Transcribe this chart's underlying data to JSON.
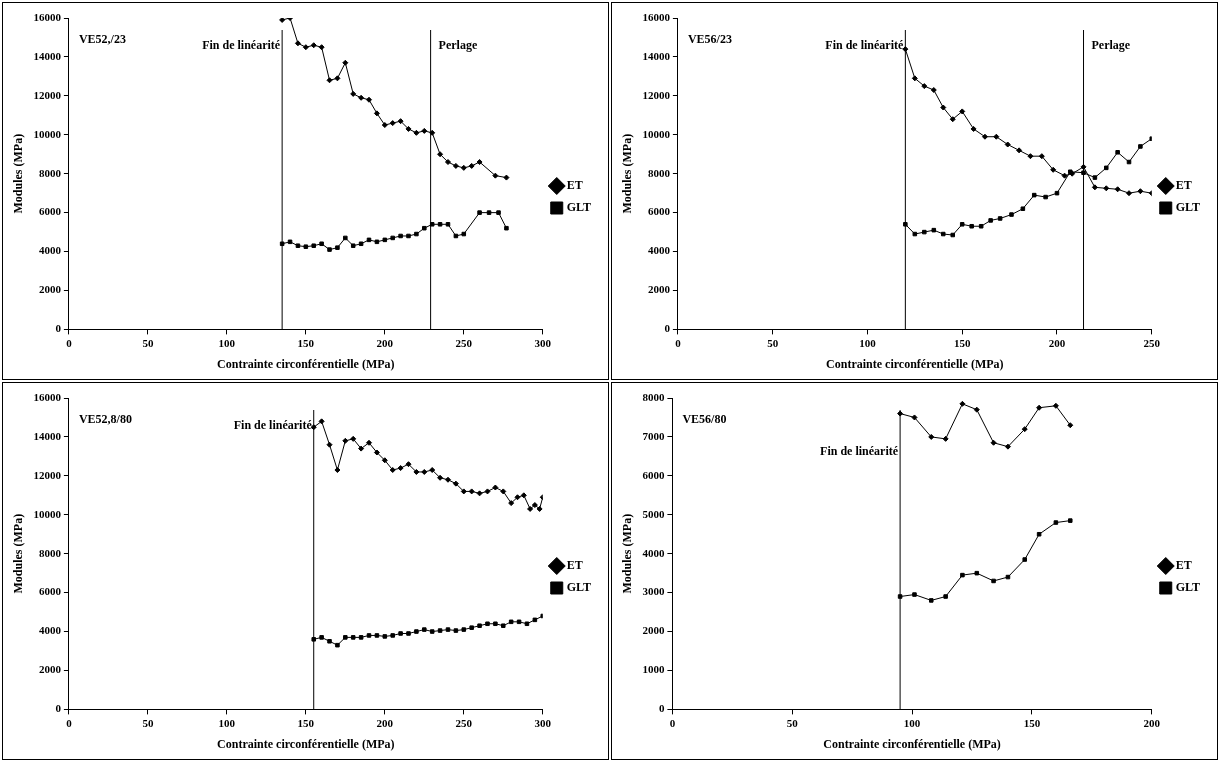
{
  "chart_data": [
    {
      "type": "line",
      "xlabel": "Contrainte circonférentielle (MPa)",
      "ylabel": "Modules (MPa)",
      "annotations": [
        "VE52,/23"
      ],
      "xlim": [
        0,
        300
      ],
      "xticks": [
        0,
        50,
        100,
        150,
        200,
        250,
        300
      ],
      "ylim": [
        0,
        16000
      ],
      "yticks": [
        0,
        2000,
        4000,
        6000,
        8000,
        10000,
        12000,
        14000,
        16000
      ],
      "grid": false,
      "legend": "right",
      "ref_lines": [
        {
          "axis": "x",
          "value": 135,
          "label": "Fin de linéarité",
          "color": "#000000"
        },
        {
          "axis": "x",
          "value": 229,
          "label": "Perlage",
          "color": "#000000"
        }
      ],
      "series": [
        {
          "name": "ET",
          "color": "#000000",
          "marker": "diamond",
          "x": [
            135,
            140,
            145,
            150,
            155,
            160,
            165,
            170,
            175,
            180,
            185,
            190,
            195,
            200,
            205,
            210,
            215,
            220,
            225,
            230,
            235,
            240,
            245,
            250,
            255,
            260,
            270,
            277
          ],
          "values": [
            15900,
            16000,
            14700,
            14500,
            14600,
            14500,
            12800,
            12900,
            13700,
            12100,
            11900,
            11800,
            11100,
            10500,
            10600,
            10700,
            10300,
            10100,
            10200,
            10100,
            9000,
            8600,
            8400,
            8300,
            8400,
            8600,
            7900,
            7800
          ]
        },
        {
          "name": "GLT",
          "color": "#000000",
          "marker": "square",
          "x": [
            135,
            140,
            145,
            150,
            155,
            160,
            165,
            170,
            175,
            180,
            185,
            190,
            195,
            200,
            205,
            210,
            215,
            220,
            225,
            230,
            235,
            240,
            245,
            250,
            260,
            266,
            272,
            277
          ],
          "values": [
            4400,
            4500,
            4300,
            4250,
            4300,
            4400,
            4100,
            4200,
            4700,
            4300,
            4400,
            4600,
            4500,
            4600,
            4700,
            4800,
            4800,
            4900,
            5200,
            5400,
            5400,
            5400,
            4800,
            4900,
            6000,
            6000,
            6000,
            5200
          ]
        }
      ]
    },
    {
      "type": "line",
      "xlabel": "Contrainte circonférentielle (MPa)",
      "ylabel": "Modules (MPa)",
      "annotations": [
        "VE56/23"
      ],
      "xlim": [
        0,
        250
      ],
      "xticks": [
        0,
        50,
        100,
        150,
        200,
        250
      ],
      "ylim": [
        0,
        16000
      ],
      "yticks": [
        0,
        2000,
        4000,
        6000,
        8000,
        10000,
        12000,
        14000,
        16000
      ],
      "grid": false,
      "legend": "right",
      "ref_lines": [
        {
          "axis": "x",
          "value": 120,
          "label": "Fin de linéarité",
          "color": "#000000"
        },
        {
          "axis": "x",
          "value": 214,
          "label": "Perlage",
          "color": "#000000"
        }
      ],
      "series": [
        {
          "name": "ET",
          "color": "#000000",
          "marker": "diamond",
          "x": [
            120,
            125,
            130,
            135,
            140,
            145,
            150,
            156,
            162,
            168,
            174,
            180,
            186,
            192,
            198,
            204,
            208,
            214,
            220,
            226,
            232,
            238,
            244,
            250
          ],
          "values": [
            14400,
            12900,
            12500,
            12300,
            11400,
            10800,
            11200,
            10300,
            9900,
            9900,
            9500,
            9200,
            8900,
            8900,
            8200,
            7900,
            8000,
            8350,
            7300,
            7250,
            7200,
            7000,
            7100,
            7000
          ]
        },
        {
          "name": "GLT",
          "color": "#000000",
          "marker": "square",
          "x": [
            120,
            125,
            130,
            135,
            140,
            145,
            150,
            155,
            160,
            165,
            170,
            176,
            182,
            188,
            194,
            200,
            207,
            214,
            220,
            226,
            232,
            238,
            244,
            250
          ],
          "values": [
            5400,
            4900,
            5000,
            5100,
            4900,
            4850,
            5400,
            5300,
            5300,
            5600,
            5700,
            5900,
            6200,
            6900,
            6800,
            7000,
            8100,
            8050,
            7800,
            8300,
            9100,
            8600,
            9400,
            9800
          ]
        }
      ]
    },
    {
      "type": "line",
      "xlabel": "Contrainte circonférentielle (MPa)",
      "ylabel": "Modules (MPa)",
      "annotations": [
        "VE52,8/80"
      ],
      "xlim": [
        0,
        300
      ],
      "xticks": [
        0,
        50,
        100,
        150,
        200,
        250,
        300
      ],
      "ylim": [
        0,
        16000
      ],
      "yticks": [
        0,
        2000,
        4000,
        6000,
        8000,
        10000,
        12000,
        14000,
        16000
      ],
      "grid": false,
      "legend": "right",
      "ref_lines": [
        {
          "axis": "x",
          "value": 155,
          "label": "Fin de linéarité",
          "color": "#000000"
        }
      ],
      "series": [
        {
          "name": "ET",
          "color": "#000000",
          "marker": "diamond",
          "x": [
            155,
            160,
            165,
            170,
            175,
            180,
            185,
            190,
            195,
            200,
            205,
            210,
            215,
            220,
            225,
            230,
            235,
            240,
            245,
            250,
            255,
            260,
            265,
            270,
            275,
            280,
            284,
            288,
            292,
            295,
            298,
            300
          ],
          "values": [
            14500,
            14800,
            13600,
            12300,
            13800,
            13900,
            13400,
            13700,
            13200,
            12800,
            12300,
            12400,
            12600,
            12200,
            12200,
            12300,
            11900,
            11800,
            11600,
            11200,
            11200,
            11100,
            11200,
            11400,
            11200,
            10600,
            10900,
            11000,
            10300,
            10500,
            10300,
            10900
          ]
        },
        {
          "name": "GLT",
          "color": "#000000",
          "marker": "square",
          "x": [
            155,
            160,
            165,
            170,
            175,
            180,
            185,
            190,
            195,
            200,
            205,
            210,
            215,
            220,
            225,
            230,
            235,
            240,
            245,
            250,
            255,
            260,
            265,
            270,
            275,
            280,
            285,
            290,
            295,
            300
          ],
          "values": [
            3600,
            3700,
            3500,
            3300,
            3700,
            3700,
            3700,
            3800,
            3800,
            3750,
            3800,
            3900,
            3900,
            4000,
            4100,
            4000,
            4050,
            4100,
            4050,
            4100,
            4200,
            4300,
            4400,
            4400,
            4300,
            4500,
            4500,
            4400,
            4600,
            4800
          ]
        }
      ]
    },
    {
      "type": "line",
      "xlabel": "Contrainte circonférentielle (MPa)",
      "ylabel": "Modules (MPa)",
      "annotations": [
        "VE56/80"
      ],
      "xlim": [
        0,
        200
      ],
      "xticks": [
        0,
        50,
        100,
        150,
        200
      ],
      "ylim": [
        0,
        8000
      ],
      "yticks": [
        0,
        1000,
        2000,
        3000,
        4000,
        5000,
        6000,
        7000,
        8000
      ],
      "grid": false,
      "legend": "right",
      "ref_lines": [
        {
          "axis": "x",
          "value": 95,
          "label": "Fin de linéarité",
          "color": "#000000"
        }
      ],
      "series": [
        {
          "name": "ET",
          "color": "#000000",
          "marker": "diamond",
          "x": [
            95,
            101,
            108,
            114,
            121,
            127,
            134,
            140,
            147,
            153,
            160,
            166
          ],
          "values": [
            7600,
            7500,
            7000,
            6950,
            7850,
            7700,
            6850,
            6750,
            7200,
            7750,
            7800,
            7300
          ]
        },
        {
          "name": "GLT",
          "color": "#000000",
          "marker": "square",
          "x": [
            95,
            101,
            108,
            114,
            121,
            127,
            134,
            140,
            147,
            153,
            160,
            166
          ],
          "values": [
            2900,
            2950,
            2800,
            2900,
            3450,
            3500,
            3300,
            3400,
            3850,
            4500,
            4800,
            4850
          ]
        }
      ]
    }
  ]
}
